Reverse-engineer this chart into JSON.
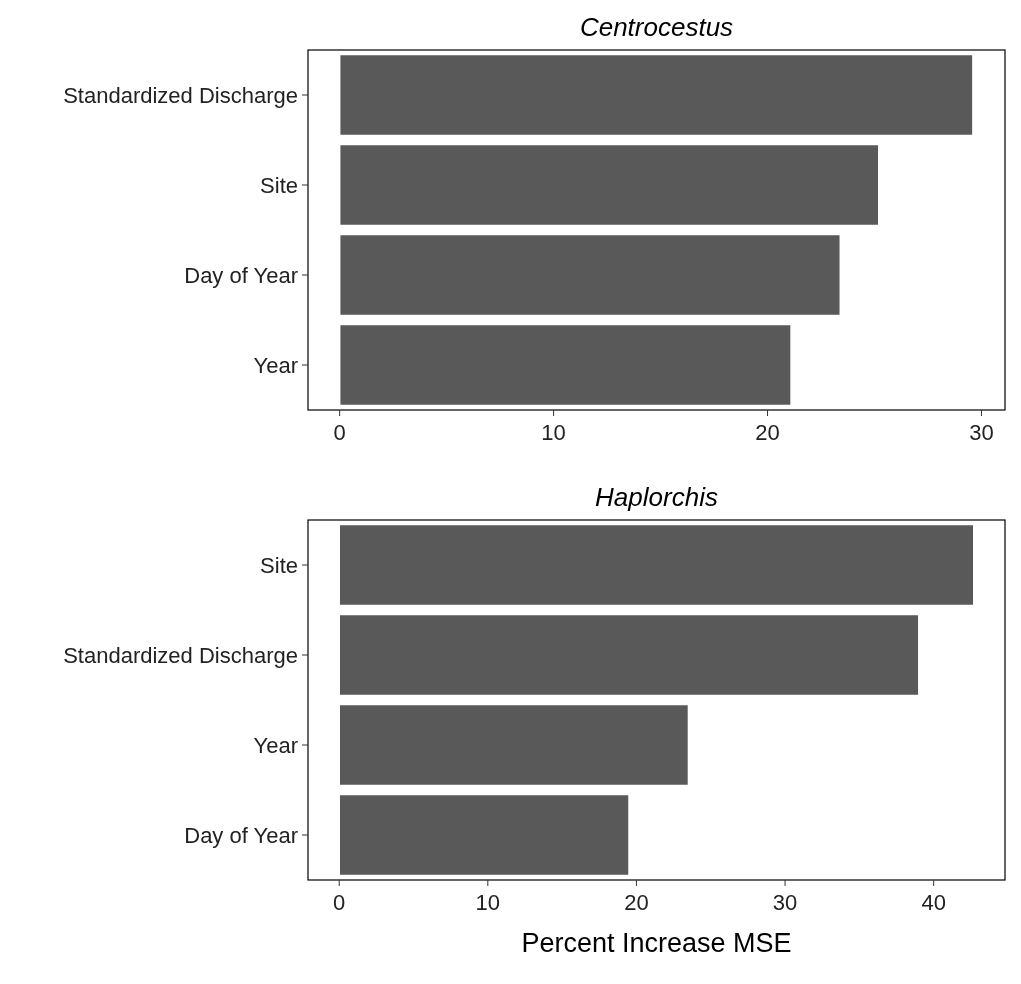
{
  "chart_data": [
    {
      "type": "bar",
      "orientation": "horizontal",
      "title": "Centrocestus",
      "categories": [
        "Standardized Discharge",
        "Site",
        "Day of Year",
        "Year"
      ],
      "values": [
        29.6,
        25.2,
        23.4,
        21.1
      ],
      "color": "#595959",
      "xlim": [
        -1.48,
        31.1
      ],
      "xticks": [
        0,
        10,
        20,
        30
      ]
    },
    {
      "type": "bar",
      "orientation": "horizontal",
      "title": "Haplorchis",
      "xlabel": "Percent Increase MSE",
      "categories": [
        "Site",
        "Standardized Discharge",
        "Year",
        "Day of Year"
      ],
      "values": [
        42.7,
        39.0,
        23.5,
        19.5
      ],
      "color": "#595959",
      "xlim": [
        -2.1,
        44.8
      ],
      "xticks": [
        0,
        10,
        20,
        30,
        40
      ]
    }
  ]
}
